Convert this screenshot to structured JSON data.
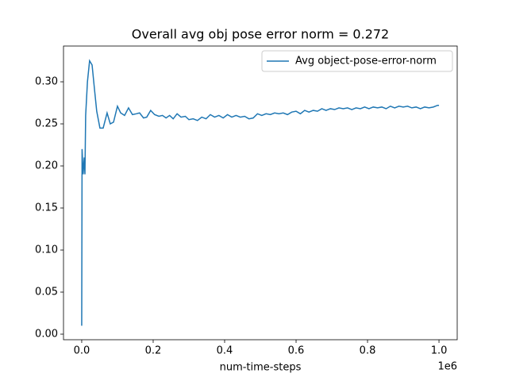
{
  "chart_data": {
    "type": "line",
    "title": "Overall avg obj pose error norm = 0.272",
    "x_label": "num-time-steps",
    "x_offset_label": "1e6",
    "x": [
      0,
      1000,
      4000,
      7000,
      9000,
      11000,
      16000,
      22000,
      29000,
      36000,
      42000,
      51000,
      60000,
      71000,
      80000,
      89000,
      100000,
      109000,
      120000,
      131000,
      142000,
      153000,
      162000,
      173000,
      182000,
      193000,
      204000,
      216000,
      226000,
      236000,
      246000,
      256000,
      267000,
      278000,
      290000,
      300000,
      312000,
      324000,
      336000,
      348000,
      360000,
      372000,
      384000,
      396000,
      408000,
      420000,
      432000,
      444000,
      456000,
      468000,
      480000,
      492000,
      504000,
      516000,
      528000,
      540000,
      552000,
      564000,
      576000,
      588000,
      600000,
      612000,
      624000,
      636000,
      648000,
      660000,
      672000,
      684000,
      696000,
      708000,
      720000,
      732000,
      744000,
      756000,
      768000,
      780000,
      792000,
      804000,
      816000,
      828000,
      840000,
      852000,
      864000,
      876000,
      888000,
      900000,
      912000,
      924000,
      936000,
      948000,
      960000,
      972000,
      984000,
      996000,
      1000000
    ],
    "series": [
      {
        "name": "Avg object-pose-error-norm",
        "color": "#1f77b4",
        "values": [
          0.01,
          0.22,
          0.19,
          0.21,
          0.19,
          0.26,
          0.3,
          0.325,
          0.32,
          0.29,
          0.265,
          0.245,
          0.245,
          0.263,
          0.25,
          0.252,
          0.271,
          0.263,
          0.26,
          0.269,
          0.261,
          0.262,
          0.263,
          0.257,
          0.258,
          0.266,
          0.261,
          0.259,
          0.26,
          0.257,
          0.26,
          0.256,
          0.262,
          0.258,
          0.259,
          0.255,
          0.256,
          0.254,
          0.258,
          0.256,
          0.261,
          0.258,
          0.26,
          0.257,
          0.261,
          0.258,
          0.26,
          0.258,
          0.259,
          0.256,
          0.257,
          0.262,
          0.26,
          0.262,
          0.261,
          0.263,
          0.262,
          0.263,
          0.261,
          0.264,
          0.265,
          0.262,
          0.266,
          0.264,
          0.266,
          0.265,
          0.268,
          0.266,
          0.268,
          0.267,
          0.269,
          0.268,
          0.269,
          0.267,
          0.269,
          0.268,
          0.27,
          0.268,
          0.27,
          0.269,
          0.27,
          0.268,
          0.271,
          0.269,
          0.271,
          0.27,
          0.271,
          0.269,
          0.27,
          0.268,
          0.27,
          0.269,
          0.27,
          0.272,
          0.272
        ]
      }
    ],
    "xlim": [
      -51000,
      1051000
    ],
    "ylim": [
      -0.0066,
      0.3425
    ],
    "xticks": [
      {
        "value": 0,
        "label": "0.0"
      },
      {
        "value": 200000,
        "label": "0.2"
      },
      {
        "value": 400000,
        "label": "0.4"
      },
      {
        "value": 600000,
        "label": "0.6"
      },
      {
        "value": 800000,
        "label": "0.8"
      },
      {
        "value": 1000000,
        "label": "1.0"
      }
    ],
    "yticks": [
      {
        "value": 0,
        "label": "0.00"
      },
      {
        "value": 0.05,
        "label": "0.05"
      },
      {
        "value": 0.1,
        "label": "0.10"
      },
      {
        "value": 0.15,
        "label": "0.15"
      },
      {
        "value": 0.2,
        "label": "0.20"
      },
      {
        "value": 0.25,
        "label": "0.25"
      },
      {
        "value": 0.3,
        "label": "0.30"
      }
    ],
    "grid": false,
    "legend": "upper right"
  }
}
